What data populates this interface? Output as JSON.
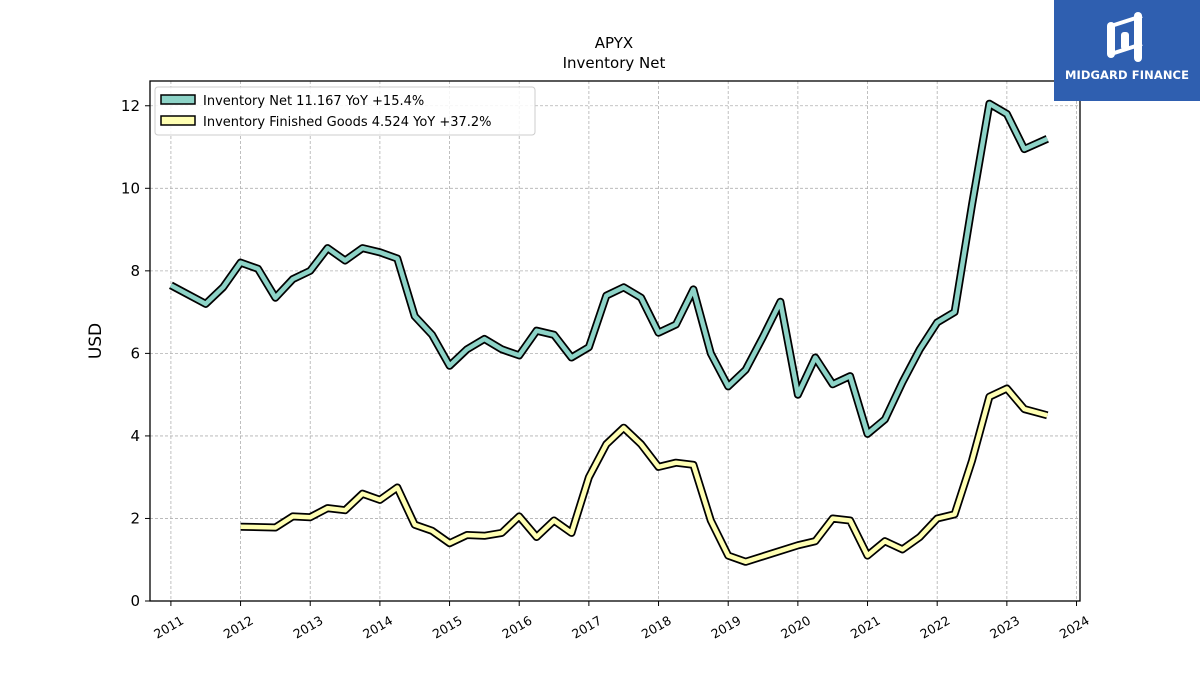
{
  "brand": {
    "name": "MIDGARD FINANCE",
    "color": "#2f5fb0"
  },
  "chart_data": {
    "type": "line",
    "title": "APYX",
    "subtitle": "Inventory Net",
    "xlabel": "",
    "ylabel": "USD",
    "xlim": [
      2010.7,
      2024.05
    ],
    "ylim": [
      0,
      12.6
    ],
    "x_ticks": [
      "2011",
      "2012",
      "2013",
      "2014",
      "2015",
      "2016",
      "2017",
      "2018",
      "2019",
      "2020",
      "2021",
      "2022",
      "2023",
      "2024"
    ],
    "y_ticks": [
      "0",
      "2",
      "4",
      "6",
      "8",
      "10",
      "12"
    ],
    "grid": true,
    "legend_position": "top-left",
    "series": [
      {
        "name": "Inventory Net",
        "legend_label": "Inventory Net  11.167 YoY +15.4%",
        "color": "#8dd3c7",
        "points": [
          [
            2011.0,
            7.65
          ],
          [
            2011.5,
            7.2
          ],
          [
            2011.75,
            7.6
          ],
          [
            2012.0,
            8.2
          ],
          [
            2012.25,
            8.05
          ],
          [
            2012.5,
            7.35
          ],
          [
            2012.75,
            7.8
          ],
          [
            2013.0,
            8.0
          ],
          [
            2013.25,
            8.55
          ],
          [
            2013.5,
            8.25
          ],
          [
            2013.75,
            8.55
          ],
          [
            2014.0,
            8.45
          ],
          [
            2014.25,
            8.3
          ],
          [
            2014.5,
            6.9
          ],
          [
            2014.75,
            6.45
          ],
          [
            2015.0,
            5.7
          ],
          [
            2015.25,
            6.1
          ],
          [
            2015.5,
            6.35
          ],
          [
            2015.75,
            6.1
          ],
          [
            2016.0,
            5.95
          ],
          [
            2016.25,
            6.55
          ],
          [
            2016.5,
            6.45
          ],
          [
            2016.75,
            5.9
          ],
          [
            2017.0,
            6.15
          ],
          [
            2017.25,
            7.4
          ],
          [
            2017.5,
            7.6
          ],
          [
            2017.75,
            7.35
          ],
          [
            2018.0,
            6.5
          ],
          [
            2018.25,
            6.7
          ],
          [
            2018.5,
            7.55
          ],
          [
            2018.75,
            6.0
          ],
          [
            2019.0,
            5.2
          ],
          [
            2019.25,
            5.6
          ],
          [
            2019.5,
            6.4
          ],
          [
            2019.75,
            7.25
          ],
          [
            2020.0,
            5.0
          ],
          [
            2020.25,
            5.9
          ],
          [
            2020.5,
            5.25
          ],
          [
            2020.75,
            5.45
          ],
          [
            2021.0,
            4.05
          ],
          [
            2021.25,
            4.4
          ],
          [
            2021.5,
            5.3
          ],
          [
            2021.75,
            6.1
          ],
          [
            2022.0,
            6.75
          ],
          [
            2022.25,
            7.0
          ],
          [
            2022.5,
            9.6
          ],
          [
            2022.75,
            12.05
          ],
          [
            2023.0,
            11.8
          ],
          [
            2023.25,
            10.95
          ],
          [
            2023.58,
            11.2
          ]
        ]
      },
      {
        "name": "Inventory Finished Goods",
        "legend_label": "Inventory Finished Goods  4.524 YoY +37.2%",
        "color": "#ffffb3",
        "points": [
          [
            2012.0,
            1.8
          ],
          [
            2012.5,
            1.78
          ],
          [
            2012.75,
            2.05
          ],
          [
            2013.0,
            2.03
          ],
          [
            2013.25,
            2.25
          ],
          [
            2013.5,
            2.2
          ],
          [
            2013.75,
            2.6
          ],
          [
            2014.0,
            2.45
          ],
          [
            2014.25,
            2.75
          ],
          [
            2014.5,
            1.85
          ],
          [
            2014.75,
            1.7
          ],
          [
            2015.0,
            1.4
          ],
          [
            2015.25,
            1.6
          ],
          [
            2015.5,
            1.58
          ],
          [
            2015.75,
            1.65
          ],
          [
            2016.0,
            2.05
          ],
          [
            2016.25,
            1.55
          ],
          [
            2016.5,
            1.95
          ],
          [
            2016.75,
            1.65
          ],
          [
            2017.0,
            3.0
          ],
          [
            2017.25,
            3.8
          ],
          [
            2017.5,
            4.2
          ],
          [
            2017.75,
            3.8
          ],
          [
            2018.0,
            3.25
          ],
          [
            2018.25,
            3.35
          ],
          [
            2018.5,
            3.3
          ],
          [
            2018.75,
            1.95
          ],
          [
            2019.0,
            1.1
          ],
          [
            2019.25,
            0.95
          ],
          [
            2020.0,
            1.35
          ],
          [
            2020.25,
            1.45
          ],
          [
            2020.5,
            2.0
          ],
          [
            2020.75,
            1.95
          ],
          [
            2021.0,
            1.1
          ],
          [
            2021.25,
            1.45
          ],
          [
            2021.5,
            1.25
          ],
          [
            2021.75,
            1.55
          ],
          [
            2022.0,
            2.0
          ],
          [
            2022.25,
            2.1
          ],
          [
            2022.5,
            3.4
          ],
          [
            2022.75,
            4.95
          ],
          [
            2023.0,
            5.15
          ],
          [
            2023.25,
            4.65
          ],
          [
            2023.58,
            4.5
          ]
        ]
      }
    ]
  }
}
